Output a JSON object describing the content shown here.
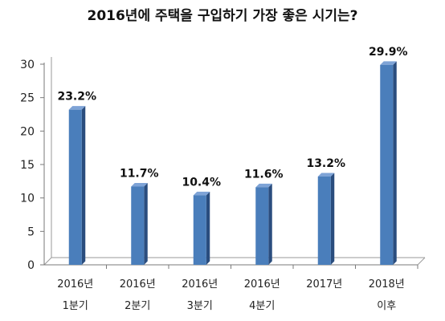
{
  "chart_data": {
    "type": "bar",
    "title": "2016년에 주택을 구입하기 가장 좋은 시기는?",
    "categories": [
      [
        "2016년",
        "1분기"
      ],
      [
        "2016년",
        "2분기"
      ],
      [
        "2016년",
        "3분기"
      ],
      [
        "2016년",
        "4분기"
      ],
      [
        "2017년",
        ""
      ],
      [
        "2018년",
        "이후"
      ]
    ],
    "values": [
      23.2,
      11.7,
      10.4,
      11.6,
      13.2,
      29.9
    ],
    "data_labels": [
      "23.2%",
      "11.7%",
      "10.4%",
      "11.6%",
      "13.2%",
      "29.9%"
    ],
    "yticks": [
      0,
      5,
      10,
      15,
      20,
      25,
      30
    ],
    "ylim": [
      0,
      30
    ],
    "xlabel": "",
    "ylabel": "",
    "grid": false,
    "legend": "none",
    "bar_color": "#4a7ebb",
    "bar_side_color": "#2a4d7e",
    "bar_top_color": "#7ea3d6"
  }
}
